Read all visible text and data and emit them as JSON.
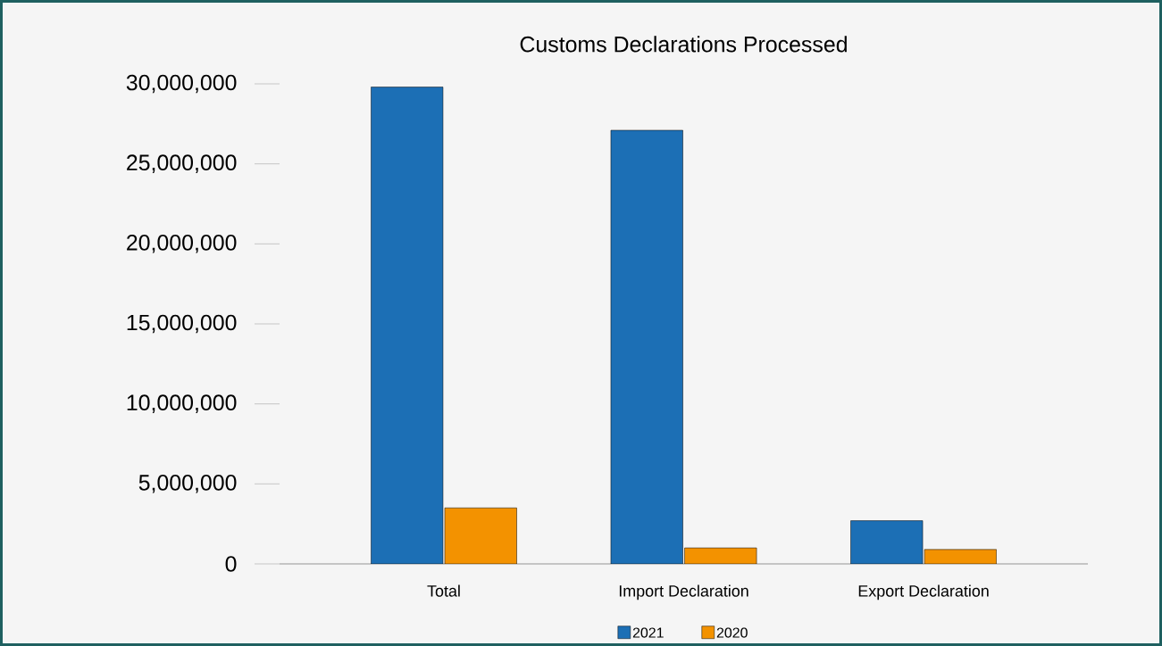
{
  "chart_data": {
    "type": "bar",
    "title": "Customs Declarations Processed",
    "categories": [
      "Total",
      "Import Declaration",
      "Export Declaration"
    ],
    "series": [
      {
        "name": "2021",
        "color": "#1c6fb5",
        "values": [
          29800000,
          27100000,
          2700000
        ]
      },
      {
        "name": "2020",
        "color": "#f39200",
        "values": [
          3500000,
          1000000,
          900000
        ]
      }
    ],
    "ylim": [
      0,
      30000000
    ],
    "yticks": [
      {
        "value": 0,
        "label": "0"
      },
      {
        "value": 5000000,
        "label": "5,000,000"
      },
      {
        "value": 10000000,
        "label": "10,000,000"
      },
      {
        "value": 15000000,
        "label": "15,000,000"
      },
      {
        "value": 20000000,
        "label": "20,000,000"
      },
      {
        "value": 25000000,
        "label": "25,000,000"
      },
      {
        "value": 30000000,
        "label": "30,000,000"
      }
    ],
    "legend": "bottom"
  }
}
